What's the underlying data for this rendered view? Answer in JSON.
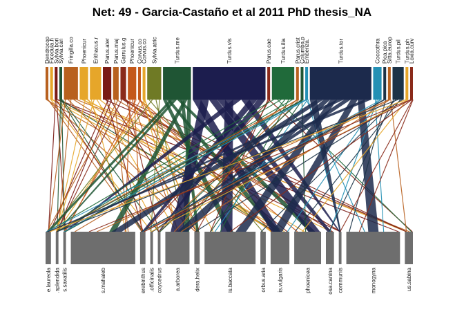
{
  "title": "Net: 49 - Garcia-Castaño et al 2011 PhD thesis_NA",
  "colors": {
    "lower_block": "#6e6e6e",
    "palette": [
      "#b8611f",
      "#e6a62a",
      "#7a1a14",
      "#c4581a",
      "#6f7a25",
      "#1f5534",
      "#1c1d4e",
      "#206a3a",
      "#1c2a4c",
      "#2490b4",
      "#1c3347",
      "#8a2a1a",
      "#d28a1a"
    ]
  },
  "upper_nodes": [
    {
      "label": "Dendrocop",
      "w": 1,
      "c": 0
    },
    {
      "label": "Ficedula.h",
      "w": 1,
      "c": 1
    },
    {
      "label": "Sylvia.bori",
      "w": 1,
      "c": 2
    },
    {
      "label": "Sylvia.can",
      "w": 1,
      "c": 5
    },
    {
      "label": "Fringilla.co",
      "w": 5,
      "c": 0
    },
    {
      "label": "Phoenicur",
      "w": 3,
      "c": 1
    },
    {
      "label": "Erithacus.r",
      "w": 4,
      "c": 1
    },
    {
      "label": "Parus.ater",
      "w": 3,
      "c": 2
    },
    {
      "label": "Parus.maj",
      "w": 2,
      "c": 0
    },
    {
      "label": "Garrulus.g",
      "w": 2,
      "c": 11
    },
    {
      "label": "Phoenicur",
      "w": 3,
      "c": 3
    },
    {
      "label": "Corvus.co",
      "w": 1,
      "c": 3
    },
    {
      "label": "Corvus.co",
      "w": 1,
      "c": 1
    },
    {
      "label": "Sylvia.atric",
      "w": 5,
      "c": 4
    },
    {
      "label": "Turdus.me",
      "w": 10,
      "c": 5
    },
    {
      "label": "Turdus.vis",
      "w": 26,
      "c": 6
    },
    {
      "label": "Parus.cae",
      "w": 1,
      "c": 11
    },
    {
      "label": "Turdus.ilia",
      "w": 8,
      "c": 7
    },
    {
      "label": "Parus.crist",
      "w": 1,
      "c": 0
    },
    {
      "label": "Columba.p",
      "w": 1,
      "c": 5
    },
    {
      "label": "Emberiza.",
      "w": 1,
      "c": 9
    },
    {
      "label": "Turdus.tor",
      "w": 22,
      "c": 8
    },
    {
      "label": "Coccothra",
      "w": 3,
      "c": 9
    },
    {
      "label": "Pica.pica",
      "w": 1,
      "c": 10
    },
    {
      "label": "Sitta.europ",
      "w": 1,
      "c": 0
    },
    {
      "label": "Turdus.pil",
      "w": 4,
      "c": 10
    },
    {
      "label": "Turdus.ph",
      "w": 1,
      "c": 1
    },
    {
      "label": "Loxia.curv",
      "w": 1,
      "c": 11
    }
  ],
  "lower_nodes": [
    {
      "label": "e.laureola",
      "w": 2
    },
    {
      "label": ".splendida",
      "w": 1
    },
    {
      "label": "s.saxatilis",
      "w": 1
    },
    {
      "label": "s.mahaleb",
      "w": 24
    },
    {
      "label": "erebinthus",
      "w": 2
    },
    {
      "label": ".officinalis",
      "w": 1
    },
    {
      "label": "oxycedrus",
      "w": 1
    },
    {
      "label": "a.arborea",
      "w": 9
    },
    {
      "label": "dera.helix",
      "w": 2
    },
    {
      "label": "is.baccata",
      "w": 19
    },
    {
      "label": "orbus.aria",
      "w": 2
    },
    {
      "label": "is.vulgaris",
      "w": 7
    },
    {
      "label": "phoenicea",
      "w": 10
    },
    {
      "label": "osa.canina",
      "w": 3
    },
    {
      "label": "communis",
      "w": 1
    },
    {
      "label": "monogyna",
      "w": 20
    },
    {
      "label": "us.sabina",
      "w": 3
    }
  ]
}
